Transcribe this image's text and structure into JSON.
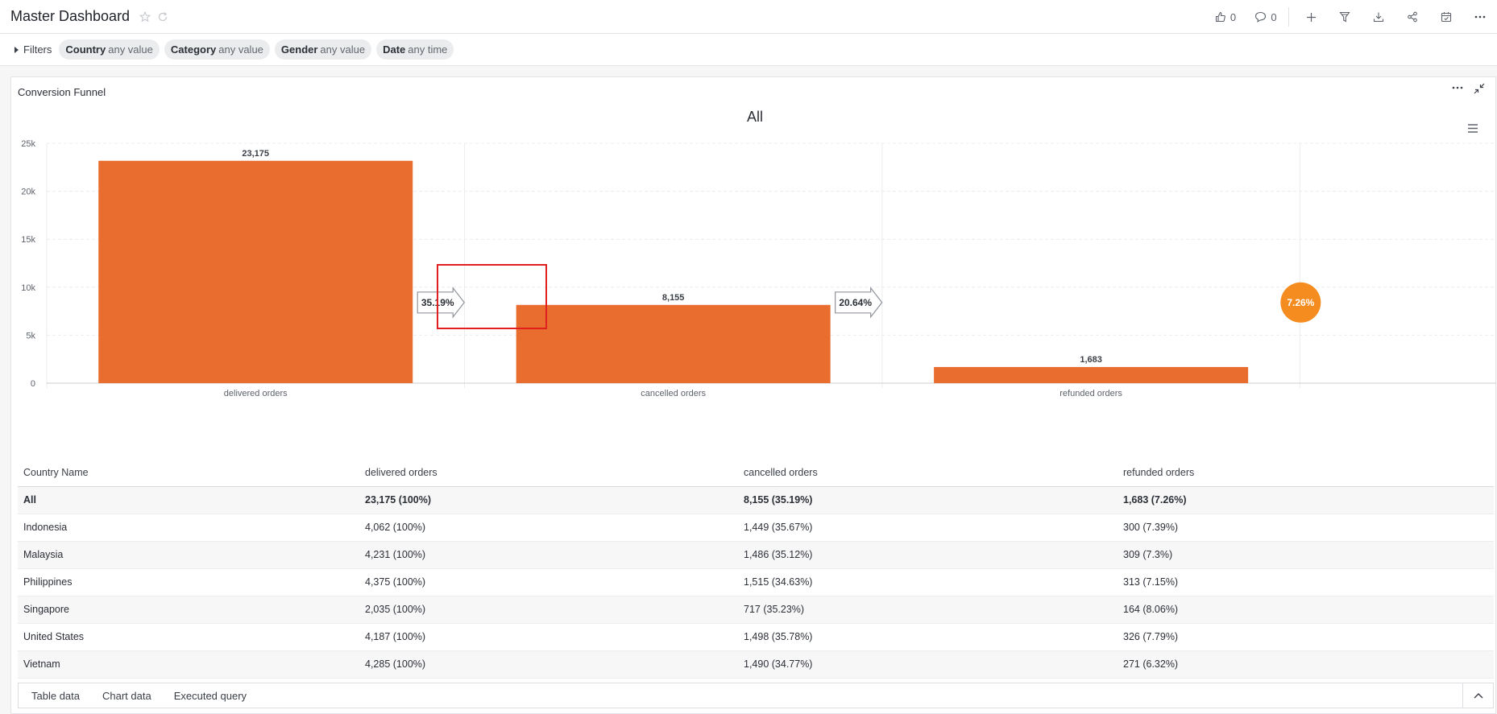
{
  "header": {
    "title": "Master Dashboard",
    "like_count": "0",
    "comment_count": "0"
  },
  "filters": {
    "toggle_label": "Filters",
    "chips": [
      {
        "name": "Country",
        "value": "any value"
      },
      {
        "name": "Category",
        "value": "any value"
      },
      {
        "name": "Gender",
        "value": "any value"
      },
      {
        "name": "Date",
        "value": "any time"
      }
    ]
  },
  "card": {
    "title": "Conversion Funnel",
    "menu_label": "···"
  },
  "chart_data": {
    "type": "bar",
    "title": "All",
    "categories": [
      "delivered orders",
      "cancelled orders",
      "refunded orders"
    ],
    "values": [
      23175,
      8155,
      1683
    ],
    "value_labels": [
      "23,175",
      "8,155",
      "1,683"
    ],
    "step_conversion_labels": [
      "35.19%",
      "20.64%"
    ],
    "overall_conversion_label": "7.26%",
    "ylim": [
      0,
      25000
    ],
    "yticks": [
      0,
      5000,
      10000,
      15000,
      20000,
      25000
    ],
    "ytick_labels": [
      "0",
      "5k",
      "10k",
      "15k",
      "20k",
      "25k"
    ],
    "bar_color": "#e96d2f",
    "badge_color": "#f48c1f",
    "grid": true
  },
  "table": {
    "headers": [
      "Country Name",
      "delivered orders",
      "cancelled orders",
      "refunded orders"
    ],
    "rows": [
      [
        "All",
        "23,175 (100%)",
        "8,155 (35.19%)",
        "1,683 (7.26%)"
      ],
      [
        "Indonesia",
        "4,062 (100%)",
        "1,449 (35.67%)",
        "300 (7.39%)"
      ],
      [
        "Malaysia",
        "4,231 (100%)",
        "1,486 (35.12%)",
        "309 (7.3%)"
      ],
      [
        "Philippines",
        "4,375 (100%)",
        "1,515 (34.63%)",
        "313 (7.15%)"
      ],
      [
        "Singapore",
        "2,035 (100%)",
        "717 (35.23%)",
        "164 (8.06%)"
      ],
      [
        "United States",
        "4,187 (100%)",
        "1,498 (35.78%)",
        "326 (7.79%)"
      ],
      [
        "Vietnam",
        "4,285 (100%)",
        "1,490 (34.77%)",
        "271 (6.32%)"
      ]
    ]
  },
  "bottom_tabs": [
    "Table data",
    "Chart data",
    "Executed query"
  ],
  "highlight_color": "#e01f1f"
}
